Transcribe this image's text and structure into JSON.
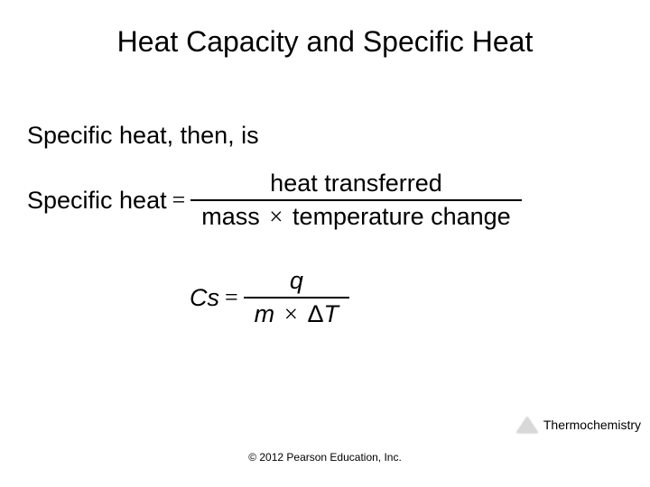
{
  "title": "Heat Capacity and Specific Heat",
  "intro": "Specific heat, then, is",
  "eq1": {
    "lhs": "Specific heat",
    "numerator": "heat transferred",
    "denom_left": "mass",
    "denom_right": "temperature change",
    "times": "×"
  },
  "eq2": {
    "lhs_c": "C",
    "lhs_s": "s",
    "num": "q",
    "denom_m": "m",
    "times": "×",
    "delta": "Δ",
    "T": "T"
  },
  "footer_label": "Thermochemistry",
  "copyright": "© 2012 Pearson Education, Inc.",
  "equals": "="
}
